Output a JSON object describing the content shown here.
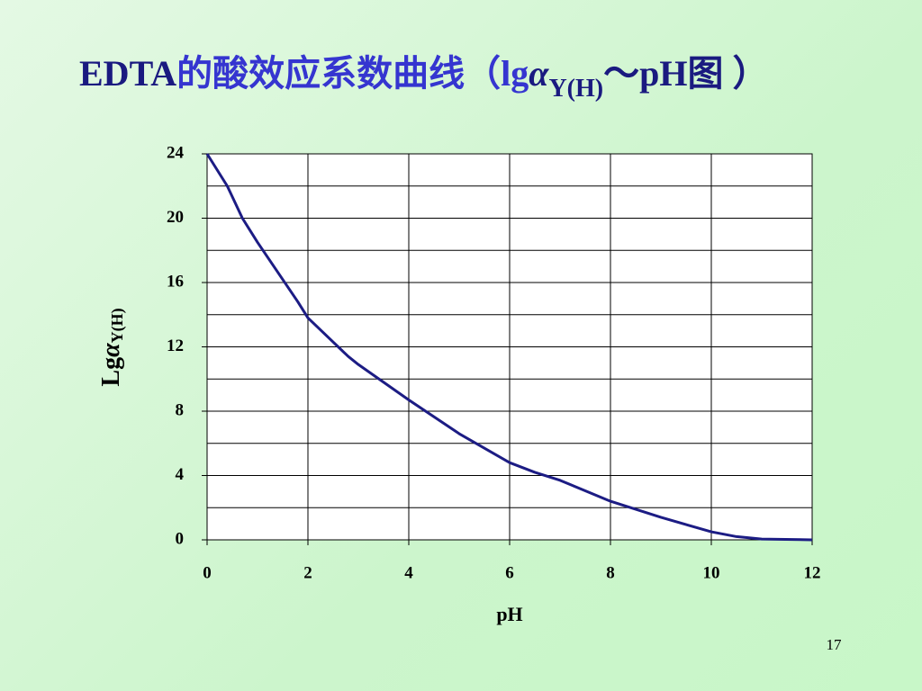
{
  "chart_data": {
    "type": "line",
    "title": {
      "lead": "EDTA",
      "cn": "的酸效应系数曲线（lg",
      "alpha": "α",
      "sub": "Y(H)",
      "tail": "～pH图 ）"
    },
    "y_label": {
      "lead": "Lg",
      "alpha": "α",
      "sub": "Y(H)"
    },
    "x_label": "pH",
    "page_number": "17",
    "x": [
      0,
      0.4,
      0.7,
      1,
      1.8,
      2,
      2.8,
      3,
      4,
      5,
      6,
      6.5,
      7,
      8,
      9,
      10,
      10.5,
      11,
      12
    ],
    "series": [
      {
        "color": "#1c1c84",
        "values": [
          24,
          22,
          20,
          18.5,
          14.8,
          13.8,
          11.4,
          10.9,
          8.7,
          6.6,
          4.8,
          4.2,
          3.7,
          2.4,
          1.4,
          0.5,
          0.2,
          0.05,
          0
        ]
      }
    ],
    "xlim": [
      0,
      12
    ],
    "xticks": [
      0,
      2,
      4,
      6,
      8,
      10,
      12
    ],
    "ylim": [
      0,
      24
    ],
    "yticks": [
      0,
      4,
      8,
      12,
      16,
      20,
      24
    ],
    "ygrid": [
      0,
      2,
      4,
      6,
      8,
      10,
      12,
      14,
      16,
      18,
      20,
      22,
      24
    ],
    "grid": true
  }
}
